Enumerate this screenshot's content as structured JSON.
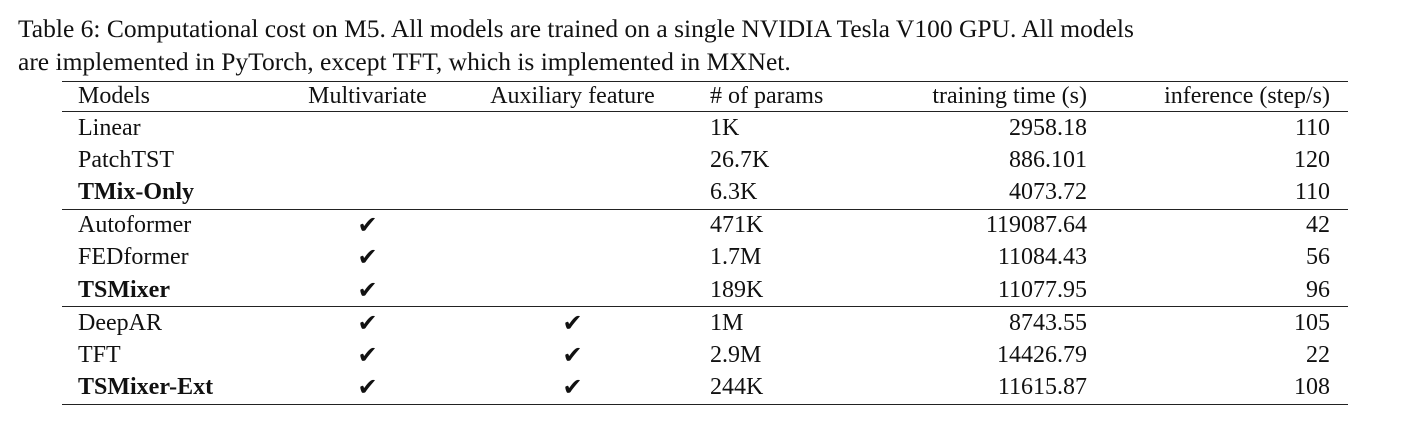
{
  "caption": [
    "Table 6: Computational cost on M5. All models are trained on a single NVIDIA Tesla V100 GPU. All models",
    "are implemented in PyTorch, except TFT, which is implemented in MXNet."
  ],
  "table": {
    "columns": [
      "Models",
      "Multivariate",
      "Auxiliary feature",
      "# of params",
      "training time (s)",
      "inference (step/s)"
    ],
    "groups": [
      [
        [
          "Linear",
          null,
          null,
          "1K",
          "2958.18",
          "110"
        ],
        [
          "PatchTST",
          null,
          null,
          "26.7K",
          "886.101",
          "120"
        ],
        [
          "TMix-Only",
          null,
          null,
          "6.3K",
          "4073.72",
          "110"
        ]
      ],
      [
        [
          "Autoformer",
          "✔",
          null,
          "471K",
          "119087.64",
          "42"
        ],
        [
          "FEDformer",
          "✔",
          null,
          "1.7M",
          "11084.43",
          "56"
        ],
        [
          "TSMixer",
          "✔",
          null,
          "189K",
          "11077.95",
          "96"
        ]
      ],
      [
        [
          "DeepAR",
          "✔",
          "✔",
          "1M",
          "8743.55",
          "105"
        ],
        [
          "TFT",
          "✔",
          "✔",
          "2.9M",
          "14426.79",
          "22"
        ],
        [
          "TSMixer-Ext",
          "✔",
          "✔",
          "244K",
          "11615.87",
          "108"
        ]
      ]
    ]
  }
}
